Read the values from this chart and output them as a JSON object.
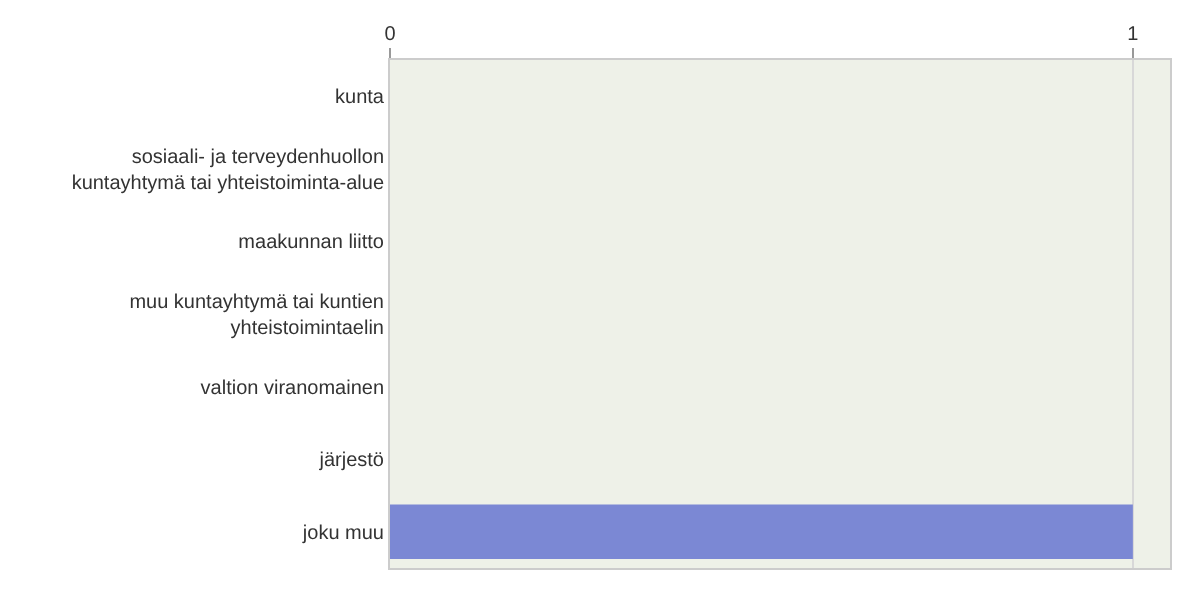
{
  "chart_data": {
    "type": "bar",
    "orientation": "horizontal",
    "categories": [
      "kunta",
      "sosiaali- ja terveydenhuollon\nkuntayhtymä tai yhteistoiminta-alue",
      "maakunnan liitto",
      "muu kuntayhtymä tai kuntien\nyhteistoimintaelin",
      "valtion viranomainen",
      "järjestö",
      "joku muu"
    ],
    "values": [
      0,
      0,
      0,
      0,
      0,
      0,
      1
    ],
    "color": "#7b88d4",
    "xlim": [
      0,
      1.05
    ],
    "xticks": [
      0,
      1
    ],
    "grid": "x"
  }
}
